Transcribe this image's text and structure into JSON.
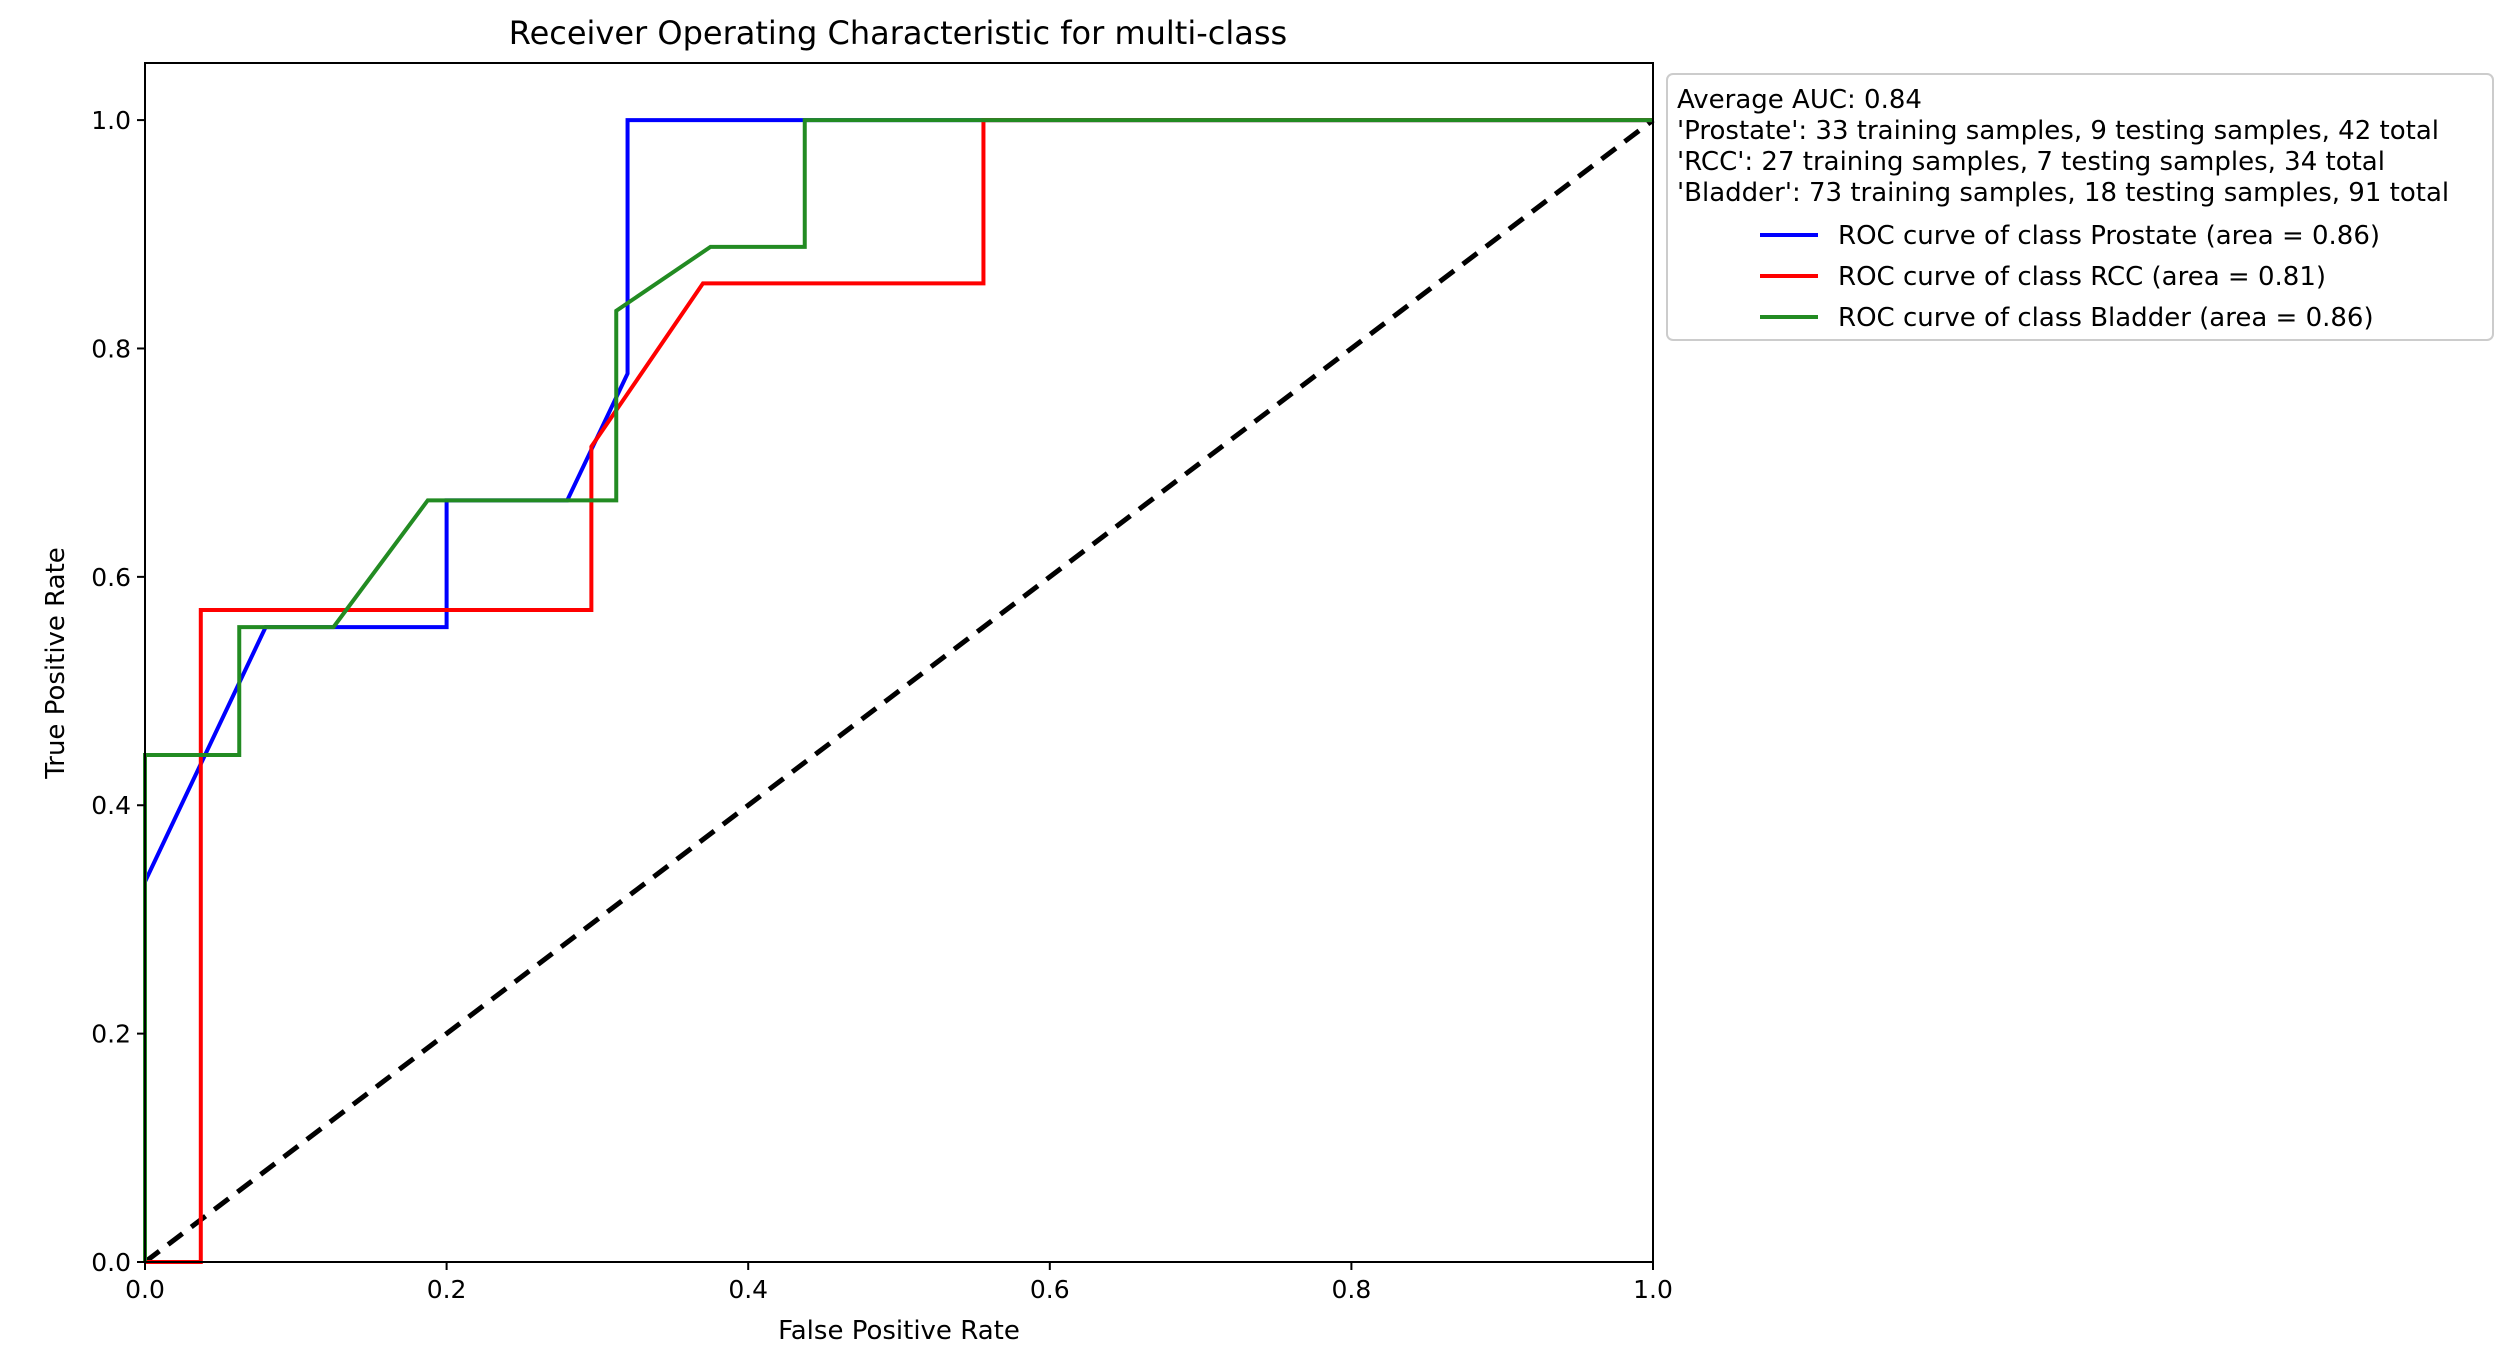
{
  "chart_data": {
    "type": "line",
    "title": "Receiver Operating Characteristic for multi-class",
    "xlabel": "False Positive Rate",
    "ylabel": "True Positive Rate",
    "xlim": [
      0.0,
      1.0
    ],
    "ylim": [
      0.0,
      1.05
    ],
    "xticks": [
      "0.0",
      "0.2",
      "0.4",
      "0.6",
      "0.8",
      "1.0"
    ],
    "yticks": [
      "0.0",
      "0.2",
      "0.4",
      "0.6",
      "0.8",
      "1.0"
    ],
    "grid": false,
    "legend_position": "outside-top-right",
    "legend_notes": [
      "Average AUC: 0.84",
      "'Prostate': 33 training samples, 9 testing samples, 42 total",
      "'RCC': 27 training samples, 7 testing samples, 34 total",
      "'Bladder': 73 training samples, 18 testing samples, 91 total"
    ],
    "series": [
      {
        "name": "ROC curve of class Prostate (area = 0.86)",
        "color": "#0000ff",
        "x": [
          0.0,
          0.0,
          0.08,
          0.2,
          0.2,
          0.28,
          0.32,
          0.32,
          0.32,
          1.0
        ],
        "y": [
          0.0,
          0.333,
          0.556,
          0.556,
          0.667,
          0.667,
          0.778,
          0.889,
          1.0,
          1.0
        ]
      },
      {
        "name": "ROC curve of class RCC (area = 0.81)",
        "color": "#ff0000",
        "x": [
          0.0,
          0.037,
          0.037,
          0.296,
          0.296,
          0.37,
          0.556,
          0.556,
          1.0
        ],
        "y": [
          0.0,
          0.0,
          0.571,
          0.571,
          0.714,
          0.857,
          0.857,
          1.0,
          1.0
        ]
      },
      {
        "name": "ROC curve of class Bladder (area = 0.86)",
        "color": "#228b22",
        "x": [
          0.0,
          0.0,
          0.0625,
          0.0625,
          0.125,
          0.1875,
          0.3125,
          0.3125,
          0.375,
          0.4375,
          0.4375,
          1.0
        ],
        "y": [
          0.0,
          0.444,
          0.444,
          0.556,
          0.556,
          0.667,
          0.667,
          0.833,
          0.889,
          0.889,
          1.0,
          1.0
        ]
      }
    ],
    "reference_line": {
      "x": [
        0.0,
        1.0
      ],
      "y": [
        0.0,
        1.0
      ],
      "color": "#000000",
      "style": "dashed"
    }
  }
}
